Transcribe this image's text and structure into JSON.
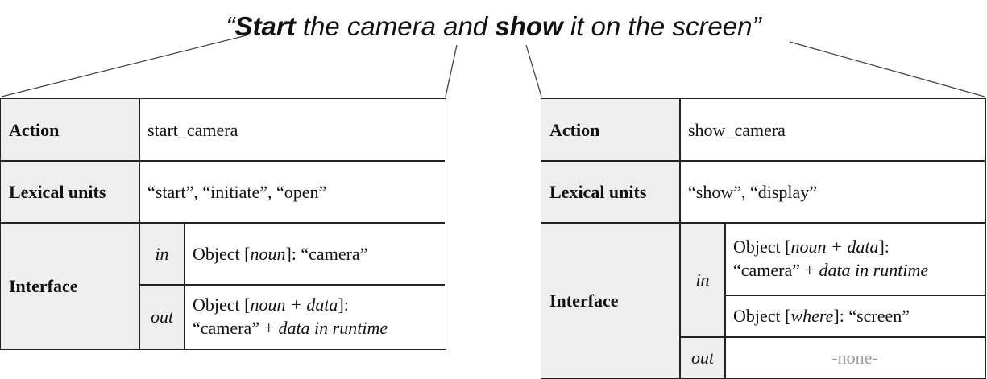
{
  "sentence": {
    "open_quote": "“",
    "word1": "Start",
    "mid": " the camera and ",
    "word2": "show",
    "tail": " it on the screen",
    "close_quote": "”"
  },
  "left_frame": {
    "action_label": "Action",
    "action_value": "start_camera",
    "lexical_label": "Lexical units",
    "lexical_value": "“start”, “initiate”, “open”",
    "interface_label": "Interface",
    "in_label": "in",
    "in_pre": "Object [",
    "in_type": "noun",
    "in_post": "]: “camera”",
    "out_label": "out",
    "out_pre": "Object [",
    "out_type": "noun + data",
    "out_post": "]:",
    "out_line2_pre": "“camera” + ",
    "out_line2_em": "data in runtime"
  },
  "right_frame": {
    "action_label": "Action",
    "action_value": "show_camera",
    "lexical_label": "Lexical units",
    "lexical_value": "“show”, “display”",
    "interface_label": "Interface",
    "in_label": "in",
    "in1_pre": "Object [",
    "in1_type": "noun + data",
    "in1_post": "]:",
    "in1_line2_pre": "“camera” + ",
    "in1_line2_em": "data in runtime",
    "in2_pre": "Object [",
    "in2_type": "where",
    "in2_post": "]: “screen”",
    "out_label": "out",
    "out_value": "-none-"
  }
}
